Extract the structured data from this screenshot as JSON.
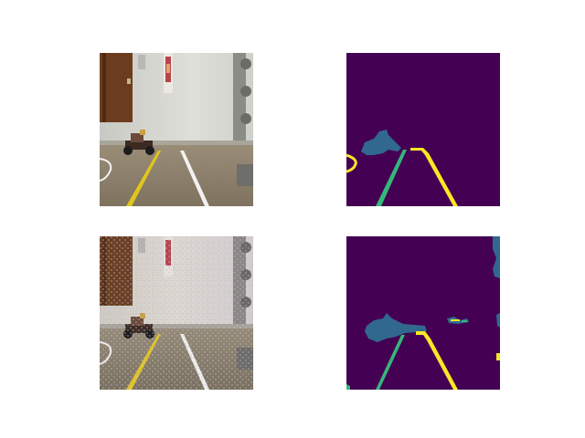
{
  "figure": {
    "panels": [
      {
        "id": "input-image-1",
        "kind": "photo"
      },
      {
        "id": "segmentation-mask-1",
        "kind": "mask"
      },
      {
        "id": "input-image-2",
        "kind": "photo-noisy"
      },
      {
        "id": "segmentation-mask-2",
        "kind": "mask"
      }
    ],
    "mask_colors": {
      "background": "#440154",
      "object": "#31688e",
      "lane_left": "#35b779",
      "lane_right": "#fde725"
    },
    "photo_colors": {
      "wall": "#d8d8d2",
      "floor": "#8d8069",
      "door": "#6b3d1e",
      "yellow_line": "#e1c51c",
      "white_line": "#f2f2f0"
    }
  }
}
